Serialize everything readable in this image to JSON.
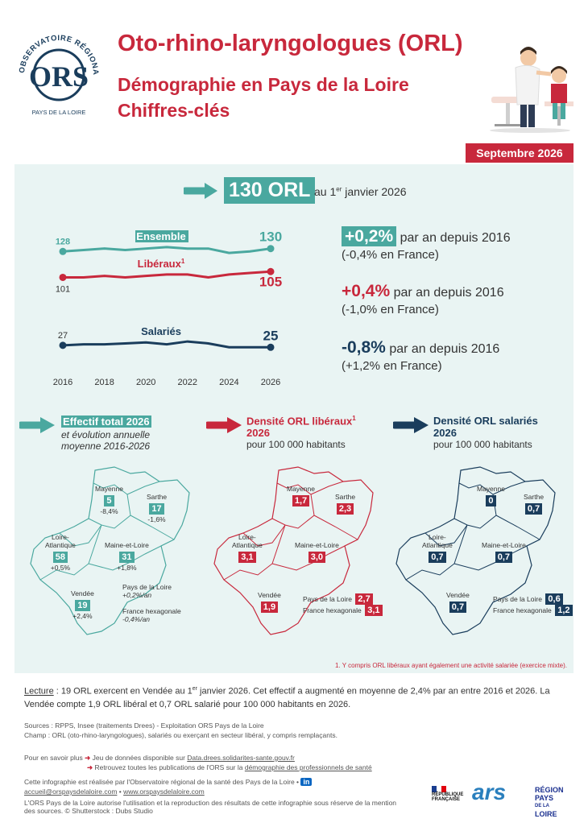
{
  "header": {
    "org_top": "OBSERVATOIRE RÉGIONAL DE LA SANTÉ",
    "org_bottom": "PAYS DE LA LOIRE",
    "logo_letters": "ORS",
    "title": "Oto-rhino-laryngologues (ORL)",
    "subtitle1": "Démographie en Pays de la Loire",
    "subtitle2": "Chiffres-clés",
    "date": "Septembre 2026"
  },
  "headline": {
    "value": "130 ORL",
    "rest_prefix": "au 1",
    "rest_sup": "er",
    "rest_suffix": " janvier 2026"
  },
  "chart_data": {
    "type": "line",
    "x": [
      2016,
      2017,
      2018,
      2019,
      2020,
      2021,
      2022,
      2023,
      2024,
      2025,
      2026
    ],
    "xticks": [
      "2016",
      "2018",
      "2020",
      "2022",
      "2024",
      "2026"
    ],
    "series": [
      {
        "name": "Ensemble",
        "color": "#4aa89f",
        "values": [
          128,
          129,
          130,
          129,
          130,
          131,
          130,
          130,
          127,
          128,
          130
        ],
        "start_label": "128",
        "end_label": "130"
      },
      {
        "name": "Libéraux",
        "name_sup": "1",
        "color": "#c8283c",
        "values": [
          101,
          101,
          102,
          101,
          102,
          103,
          103,
          101,
          103,
          104,
          105
        ],
        "start_label": "101",
        "end_label": "105"
      },
      {
        "name": "Salariés",
        "color": "#1a3d5c",
        "values": [
          27,
          28,
          28,
          29,
          30,
          28,
          31,
          29,
          25,
          25,
          25
        ],
        "start_label": "27",
        "end_label": "25"
      }
    ]
  },
  "stats": [
    {
      "value": "+0,2%",
      "text": "par an depuis 2016",
      "sub": "(-0,4% en France)",
      "color": "#4aa89f",
      "boxed": true
    },
    {
      "value": "+0,4%",
      "text": "par an depuis 2016",
      "sub": "(-1,0% en France)",
      "color": "#c8283c",
      "boxed": false
    },
    {
      "value": "-0,8%",
      "text": "par an depuis 2016",
      "sub": "(+1,2% en France)",
      "color": "#1a3d5c",
      "boxed": false
    }
  ],
  "maps": {
    "total": {
      "title": "Effectif total 2026",
      "subtitle1": "et évolution annuelle",
      "subtitle2": "moyenne 2016-2026",
      "color": "#4aa89f",
      "depts": {
        "mayenne": {
          "name": "Mayenne",
          "value": "5",
          "evol": "-8,4%"
        },
        "sarthe": {
          "name": "Sarthe",
          "value": "17",
          "evol": "-1,6%"
        },
        "loire": {
          "name": "Loire-\nAtlantique",
          "name1": "Loire-",
          "name2": "Atlantique",
          "value": "58",
          "evol": "+0,5%"
        },
        "maine": {
          "name": "Maine-et-Loire",
          "value": "31",
          "evol": "+1,8%"
        },
        "vendee": {
          "name": "Vendée",
          "value": "19",
          "evol": "+2,4%"
        }
      },
      "region_label": "Pays de la Loire",
      "region_val": "+0,2%/an",
      "france_label": "France hexagonale",
      "france_val": "-0,4%/an"
    },
    "liberaux": {
      "title": "Densité ORL libéraux",
      "title_sup": "1",
      "title2": "2026",
      "subtitle": "pour 100 000 habitants",
      "color": "#c8283c",
      "depts": {
        "mayenne": {
          "name": "Mayenne",
          "value": "1,7"
        },
        "sarthe": {
          "name": "Sarthe",
          "value": "2,3"
        },
        "loire1": "Loire-",
        "loire2": "Atlantique",
        "loire_value": "3,1",
        "maine": {
          "name": "Maine-et-Loire",
          "value": "3,0"
        },
        "vendee": {
          "name": "Vendée",
          "value": "1,9"
        }
      },
      "region_label": "Pays de la Loire",
      "region_val": "2,7",
      "france_label": "France hexagonale",
      "france_val": "3,1"
    },
    "salaries": {
      "title": "Densité ORL salariés",
      "title2": "2026",
      "subtitle": "pour 100 000 habitants",
      "color": "#1a3d5c",
      "depts": {
        "mayenne": {
          "name": "Mayenne",
          "value": "0"
        },
        "sarthe": {
          "name": "Sarthe",
          "value": "0,7"
        },
        "loire1": "Loire-",
        "loire2": "Atlantique",
        "loire_value": "0,7",
        "maine": {
          "name": "Maine-et-Loire",
          "value": "0,7"
        },
        "vendee": {
          "name": "Vendée",
          "value": "0,7"
        }
      },
      "region_label": "Pays de la Loire",
      "region_val": "0,6",
      "france_label": "France hexagonale",
      "france_val": "1,2"
    }
  },
  "footnote": "1. Y compris ORL libéraux ayant également une activité salariée (exercice mixte).",
  "lecture": {
    "label": "Lecture",
    "text1": " : 19 ORL exercent en Vendée au 1",
    "sup": "er",
    "text2": " janvier 2026. Cet effectif a augmenté en moyenne de 2,4% par an entre 2016 et 2026. La Vendée compte 1,9 ORL libéral et 0,7 ORL salarié pour 100 000 habitants en 2026."
  },
  "sources": {
    "line1": "Sources : RPPS, Insee (traitements Drees) - Exploitation ORS Pays de la Loire",
    "line2": "Champ : ORL (oto-rhino-laryngologues), salariés ou exerçant en secteur libéral, y compris remplaçants."
  },
  "footer": {
    "more": "Pour en savoir plus",
    "link1_pre": "Jeu de données disponible sur ",
    "link1": "Data.drees.solidarites-sante.gouv.fr",
    "link2_pre": "Retrouvez toutes les publications de l'ORS sur la ",
    "link2": "démographie des professionnels de santé",
    "made_by": "Cette infographie est réalisée par l'Observatoire régional de la santé des Pays de la Loire •",
    "email": "accueil@orspaysdelaloire.com",
    "sep": " • ",
    "site": "www.orspaysdelaloire.com",
    "rights1": "L'ORS Pays de la Loire autorise l'utilisation et la reproduction des résultats de cette infographie sous réserve de la mention",
    "rights2": "des sources. © Shutterstock : Dubs Studio",
    "linkedin": "in",
    "rf1": "RÉPUBLIQUE",
    "rf2": "FRANÇAISE",
    "ars": "ars",
    "region1": "RÉGION",
    "region2": "PAYS",
    "region3": "DE LA",
    "region4": "LOIRE"
  }
}
